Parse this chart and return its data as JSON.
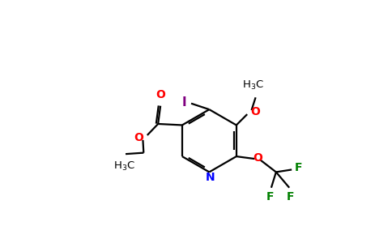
{
  "bg_color": "#ffffff",
  "black": "#000000",
  "red": "#ff0000",
  "blue": "#0000ff",
  "green": "#008000",
  "purple": "#800080",
  "figsize": [
    4.84,
    3.0
  ],
  "dpi": 100,
  "atom_colors": {
    "O": "#ff0000",
    "N": "#0000ff",
    "F": "#008000",
    "I": "#800080",
    "C": "#000000"
  }
}
